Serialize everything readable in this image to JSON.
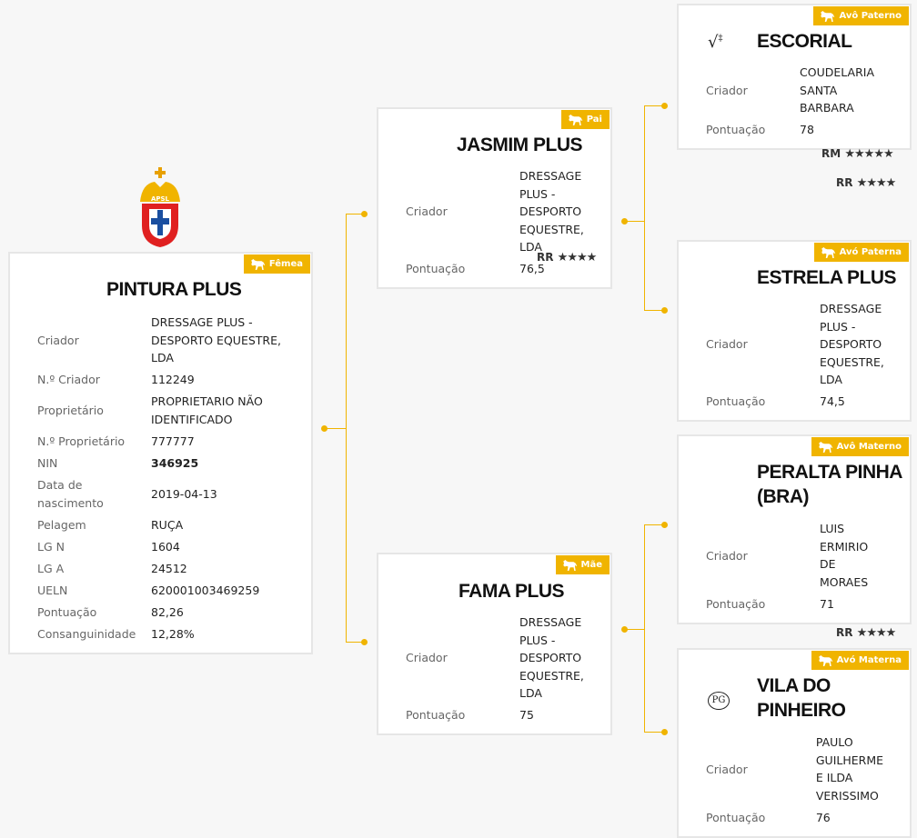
{
  "colors": {
    "accent": "#f0b400",
    "background": "#f7f7f7"
  },
  "logo": {
    "text": "APSL",
    "icon": "apsl-coat-of-arms"
  },
  "main": {
    "badge": "Fêmea",
    "name": "PINTURA PLUS",
    "rows": [
      {
        "label": "Criador",
        "value": "DRESSAGE PLUS - DESPORTO EQUESTRE, LDA"
      },
      {
        "label": "N.º Criador",
        "value": "112249"
      },
      {
        "label": "Proprietário",
        "value": "PROPRIETARIO NÃO IDENTIFICADO"
      },
      {
        "label": "N.º Proprietário",
        "value": "777777"
      },
      {
        "label": "NIN",
        "value": "346925"
      },
      {
        "label": "Data de nascimento",
        "value": "2019-04-13"
      },
      {
        "label": "Pelagem",
        "value": "RUÇA"
      },
      {
        "label": "LG N",
        "value": "1604"
      },
      {
        "label": "LG A",
        "value": "24512"
      },
      {
        "label": "UELN",
        "value": "620001003469259"
      },
      {
        "label": "Pontuação",
        "value": "82,26"
      },
      {
        "label": "Consanguinidade",
        "value": "12,28%"
      }
    ]
  },
  "sire": {
    "badge": "Pai",
    "name": "JASMIM PLUS",
    "criador_label": "Criador",
    "criador": "DRESSAGE PLUS - DESPORTO EQUESTRE, LDA",
    "pont_label": "Pontuação",
    "pontuacao": "76,5",
    "ratings": [
      {
        "code": "RR",
        "stars": "★★★★"
      }
    ]
  },
  "dam": {
    "badge": "Mãe",
    "name": "FAMA PLUS",
    "criador_label": "Criador",
    "criador": "DRESSAGE PLUS - DESPORTO EQUESTRE, LDA",
    "pont_label": "Pontuação",
    "pontuacao": "75"
  },
  "pgs": {
    "badge": "Avô Paterno",
    "name": "ESCORIAL",
    "icon": "brand-mark-icon",
    "criador_label": "Criador",
    "criador": "COUDELARIA SANTA BARBARA",
    "pont_label": "Pontuação",
    "pontuacao": "78",
    "ratings": [
      {
        "code": "RM",
        "stars": "★★★★★"
      },
      {
        "code": "RR",
        "stars": "★★★★"
      }
    ]
  },
  "pgd": {
    "badge": "Avó Paterna",
    "name": "ESTRELA PLUS",
    "criador_label": "Criador",
    "criador": "DRESSAGE PLUS - DESPORTO EQUESTRE, LDA",
    "pont_label": "Pontuação",
    "pontuacao": "74,5"
  },
  "mgs": {
    "badge": "Avô Materno",
    "name": "PERALTA PINHA (BRA)",
    "criador_label": "Criador",
    "criador": "LUIS ERMIRIO DE MORAES",
    "pont_label": "Pontuação",
    "pontuacao": "71",
    "ratings": [
      {
        "code": "RR",
        "stars": "★★★★"
      }
    ]
  },
  "mgd": {
    "badge": "Avó Materna",
    "name": "VILA DO PINHEIRO",
    "icon_text": "PG",
    "criador_label": "Criador",
    "criador": "PAULO GUILHERME E ILDA VERISSIMO",
    "pont_label": "Pontuação",
    "pontuacao": "76"
  }
}
